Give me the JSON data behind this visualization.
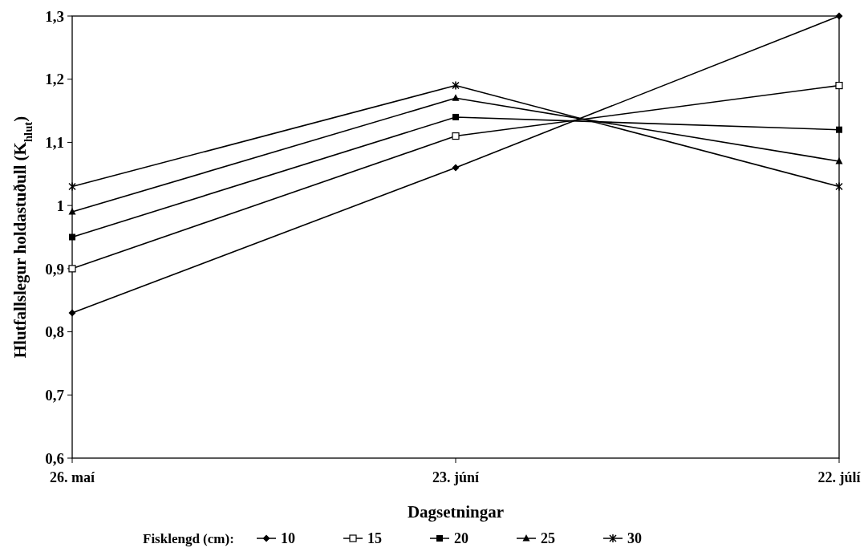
{
  "chart_data": {
    "type": "line",
    "xlabel": "Dagsetningar",
    "ylabel": "Hlutfallslegur holdastuðull (K$_{hlut}$)",
    "legend_title": "Fisklengd (cm):",
    "legend": "bottom",
    "grid": false,
    "categories": [
      "26. maí",
      "23. júní",
      "22. júlí"
    ],
    "ylim": [
      0.6,
      1.3
    ],
    "yticks": [
      {
        "value": 0.6,
        "label": "0,6"
      },
      {
        "value": 0.7,
        "label": "0,7"
      },
      {
        "value": 0.8,
        "label": "0,8"
      },
      {
        "value": 0.9,
        "label": "0,9"
      },
      {
        "value": 1,
        "label": "1"
      },
      {
        "value": 1.1,
        "label": "1,1"
      },
      {
        "value": 1.2,
        "label": "1,2"
      },
      {
        "value": 1.3,
        "label": "1,3"
      }
    ],
    "series": [
      {
        "name": "10",
        "color": "#000000",
        "marker": "diamond",
        "values": [
          0.83,
          1.06,
          1.3
        ]
      },
      {
        "name": "15",
        "color": "#000000",
        "marker": "square-open",
        "values": [
          0.9,
          1.11,
          1.19
        ]
      },
      {
        "name": "20",
        "color": "#000000",
        "marker": "square",
        "values": [
          0.95,
          1.14,
          1.12
        ]
      },
      {
        "name": "25",
        "color": "#000000",
        "marker": "triangle",
        "values": [
          0.99,
          1.17,
          1.07
        ]
      },
      {
        "name": "30",
        "color": "#000000",
        "marker": "cross",
        "values": [
          1.03,
          1.19,
          1.03
        ]
      }
    ]
  }
}
